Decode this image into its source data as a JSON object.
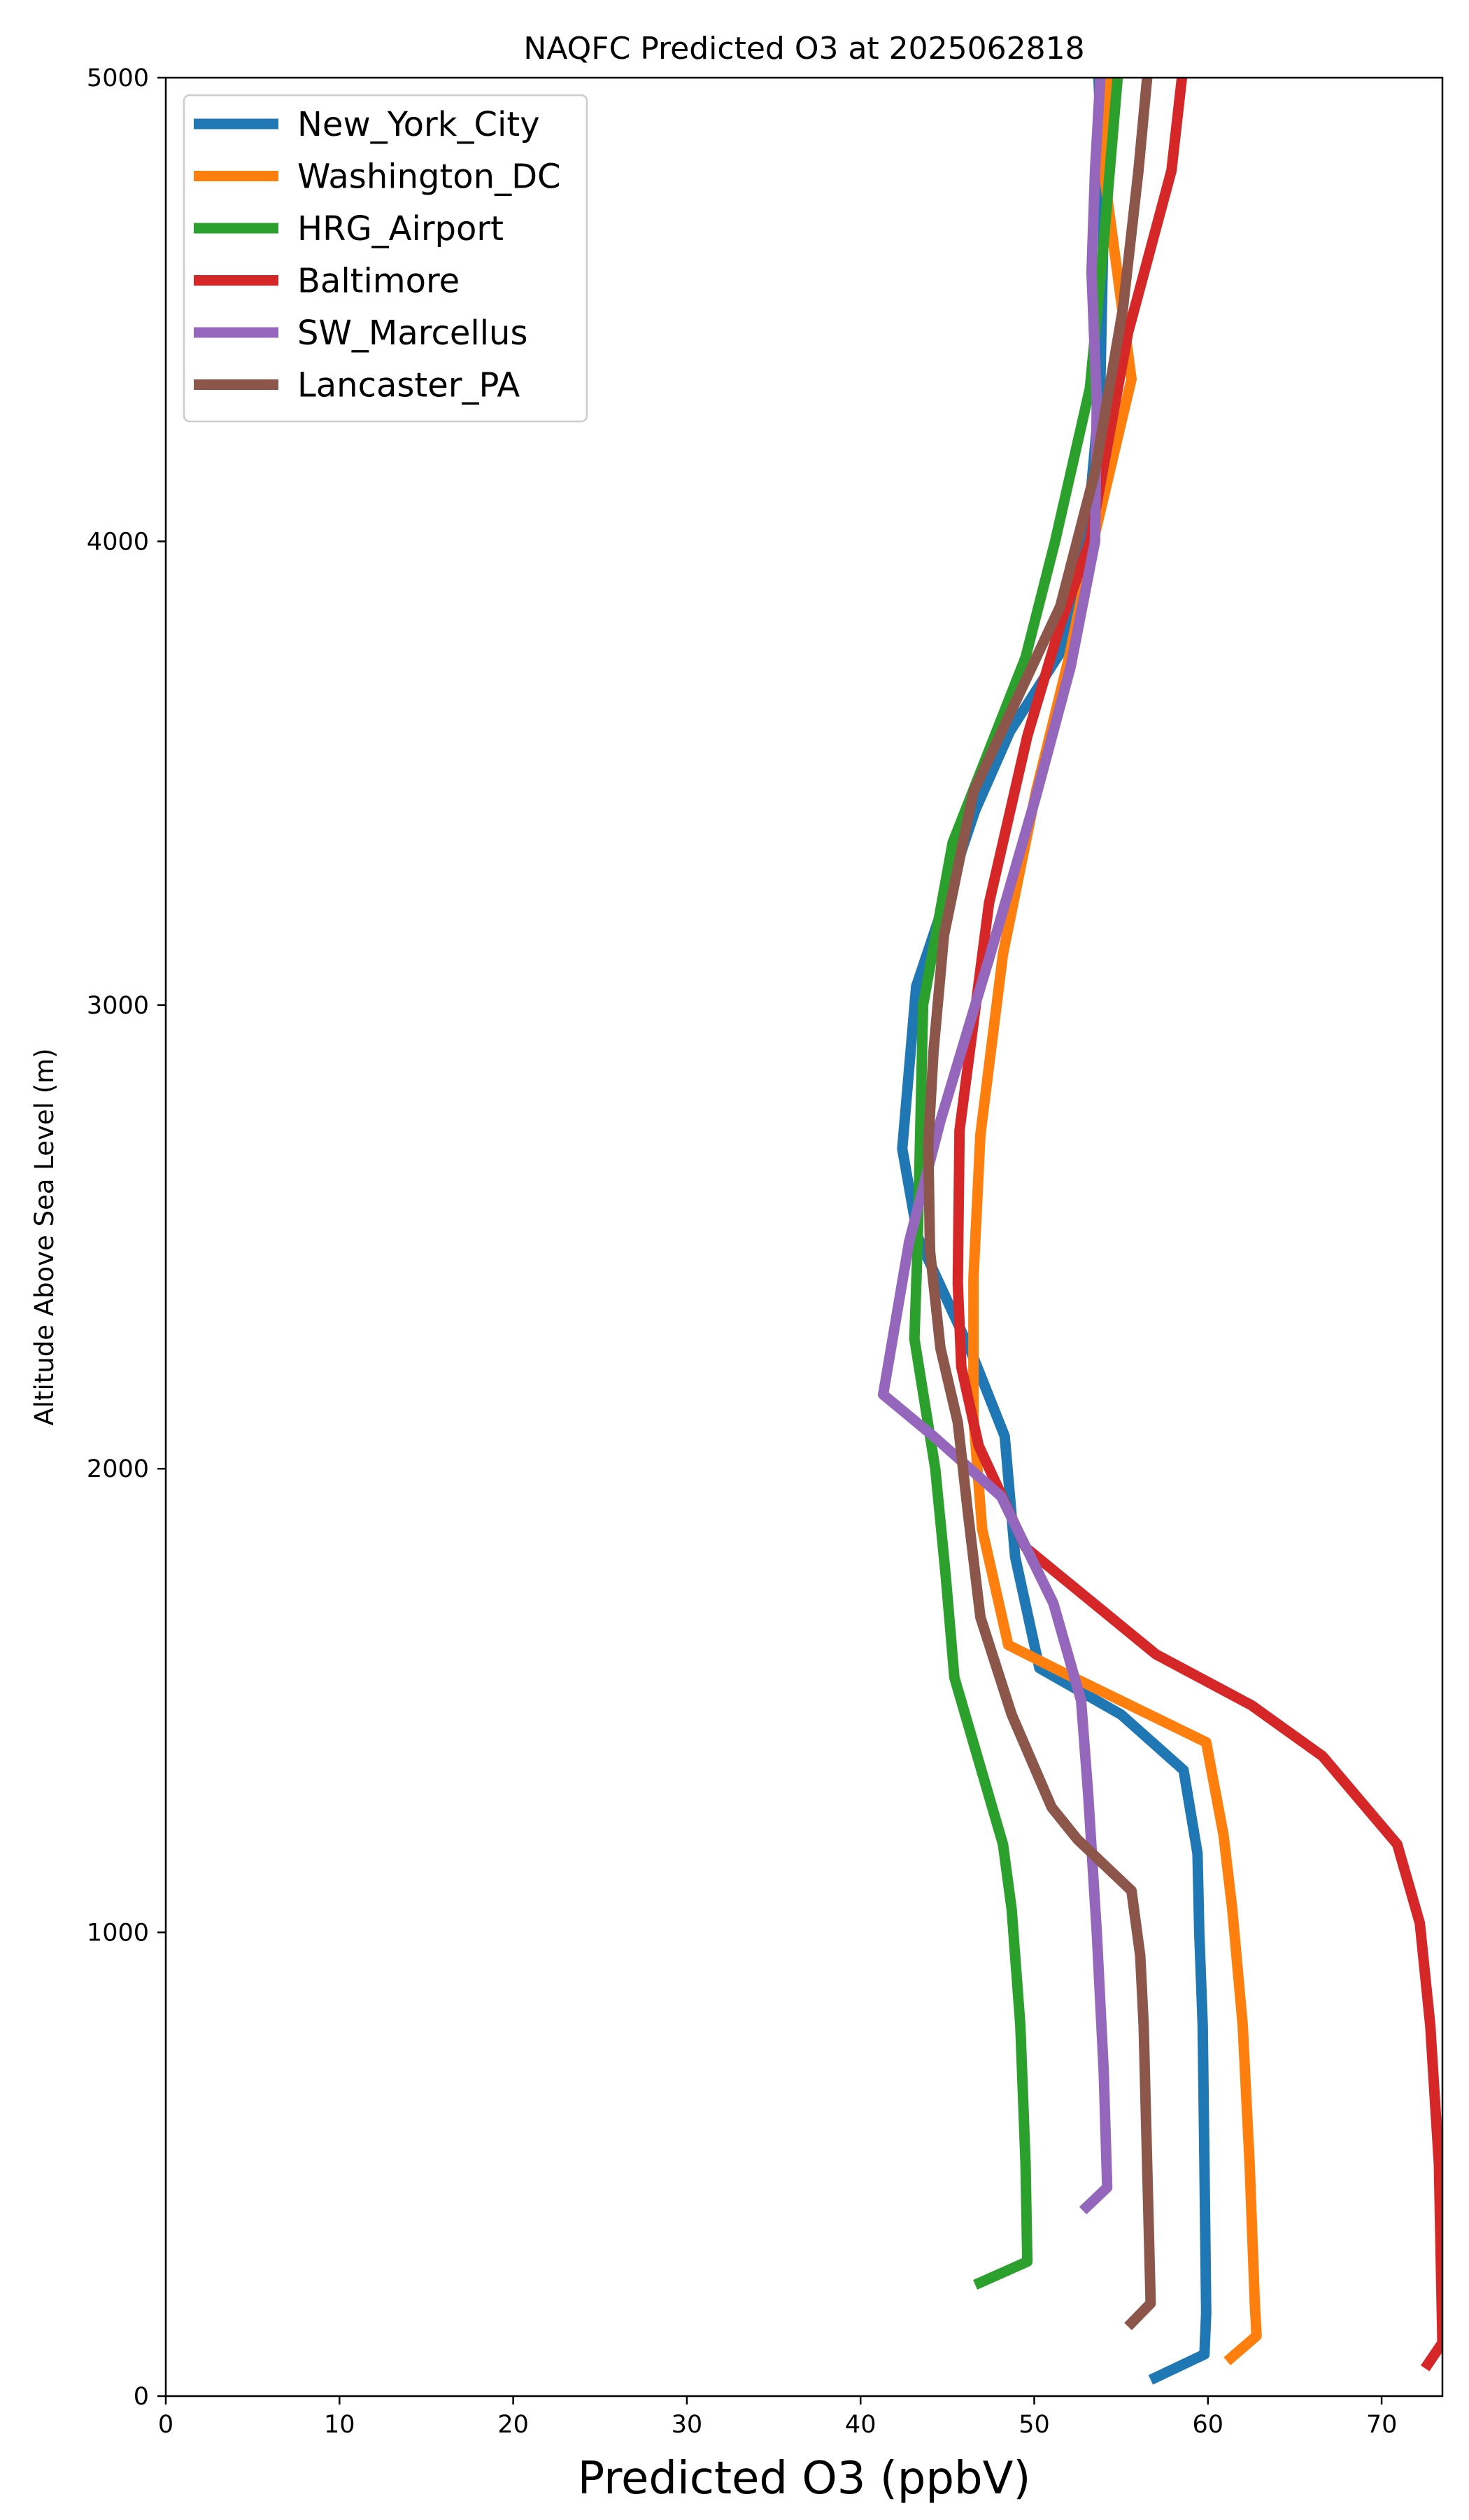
{
  "chart_data": {
    "type": "line",
    "title": "NAQFC Predicted O3 at 2025062818",
    "xlabel": "Predicted O3 (ppbV)",
    "ylabel": "Altitude Above Sea Level (m)",
    "xlim": [
      0,
      73.5
    ],
    "ylim": [
      0,
      5000
    ],
    "xticks": [
      0,
      10,
      20,
      30,
      40,
      50,
      60,
      70
    ],
    "yticks": [
      0,
      1000,
      2000,
      3000,
      4000,
      5000
    ],
    "grid": false,
    "legend_position": "upper left",
    "series": [
      {
        "name": "New_York_City",
        "color": "#1f77b4",
        "points": [
          [
            56.7,
            35
          ],
          [
            59.8,
            90
          ],
          [
            59.9,
            180
          ],
          [
            59.8,
            500
          ],
          [
            59.7,
            800
          ],
          [
            59.5,
            1000
          ],
          [
            59.4,
            1170
          ],
          [
            58.6,
            1350
          ],
          [
            55.0,
            1470
          ],
          [
            50.3,
            1570
          ],
          [
            48.9,
            1810
          ],
          [
            48.3,
            2070
          ],
          [
            46.5,
            2240
          ],
          [
            43.3,
            2500
          ],
          [
            42.4,
            2690
          ],
          [
            43.2,
            3040
          ],
          [
            46.6,
            3420
          ],
          [
            48.6,
            3590
          ],
          [
            51.5,
            3760
          ],
          [
            53.0,
            4000
          ],
          [
            53.8,
            4330
          ],
          [
            54.0,
            4700
          ],
          [
            53.7,
            5000
          ]
        ]
      },
      {
        "name": "Washington_DC",
        "color": "#ff7f0e",
        "points": [
          [
            61.1,
            75
          ],
          [
            62.8,
            130
          ],
          [
            62.7,
            200
          ],
          [
            62.4,
            500
          ],
          [
            62.0,
            800
          ],
          [
            61.4,
            1050
          ],
          [
            60.9,
            1210
          ],
          [
            59.9,
            1410
          ],
          [
            51.7,
            1560
          ],
          [
            48.5,
            1620
          ],
          [
            47.0,
            1870
          ],
          [
            46.5,
            2110
          ],
          [
            46.5,
            2410
          ],
          [
            46.9,
            2720
          ],
          [
            48.2,
            3110
          ],
          [
            50.1,
            3460
          ],
          [
            52.0,
            3750
          ],
          [
            53.4,
            4000
          ],
          [
            55.6,
            4350
          ],
          [
            54.0,
            4800
          ],
          [
            54.3,
            5000
          ]
        ]
      },
      {
        "name": "HRG_Airport",
        "color": "#2ca02c",
        "points": [
          [
            46.6,
            240
          ],
          [
            49.6,
            290
          ],
          [
            49.5,
            500
          ],
          [
            49.2,
            800
          ],
          [
            48.7,
            1050
          ],
          [
            48.2,
            1190
          ],
          [
            45.4,
            1550
          ],
          [
            44.9,
            1770
          ],
          [
            44.3,
            2000
          ],
          [
            43.1,
            2280
          ],
          [
            43.3,
            2500
          ],
          [
            43.6,
            3000
          ],
          [
            45.3,
            3350
          ],
          [
            49.5,
            3750
          ],
          [
            51.2,
            4000
          ],
          [
            53.2,
            4330
          ],
          [
            53.9,
            4600
          ],
          [
            54.8,
            5000
          ]
        ]
      },
      {
        "name": "Baltimore",
        "color": "#d62728",
        "points": [
          [
            72.5,
            60
          ],
          [
            73.5,
            115
          ],
          [
            73.3,
            500
          ],
          [
            72.8,
            800
          ],
          [
            72.2,
            1020
          ],
          [
            70.9,
            1190
          ],
          [
            66.6,
            1380
          ],
          [
            62.5,
            1490
          ],
          [
            57.0,
            1600
          ],
          [
            49.5,
            1830
          ],
          [
            46.8,
            2050
          ],
          [
            45.8,
            2220
          ],
          [
            45.6,
            2400
          ],
          [
            45.7,
            2730
          ],
          [
            47.4,
            3220
          ],
          [
            49.6,
            3580
          ],
          [
            51.5,
            3820
          ],
          [
            53.2,
            4000
          ],
          [
            55.4,
            4450
          ],
          [
            57.9,
            4800
          ],
          [
            58.5,
            5000
          ]
        ]
      },
      {
        "name": "SW_Marcellus",
        "color": "#9467bd",
        "points": [
          [
            52.8,
            400
          ],
          [
            54.2,
            450
          ],
          [
            54.0,
            700
          ],
          [
            53.6,
            1000
          ],
          [
            53.1,
            1300
          ],
          [
            52.7,
            1500
          ],
          [
            51.1,
            1710
          ],
          [
            48.1,
            1940
          ],
          [
            44.2,
            2070
          ],
          [
            41.3,
            2160
          ],
          [
            42.8,
            2490
          ],
          [
            44.6,
            2750
          ],
          [
            47.4,
            3100
          ],
          [
            50.1,
            3450
          ],
          [
            52.1,
            3730
          ],
          [
            53.5,
            4000
          ],
          [
            53.6,
            4300
          ],
          [
            53.3,
            4580
          ],
          [
            53.5,
            4800
          ],
          [
            53.8,
            5000
          ]
        ]
      },
      {
        "name": "Lancaster_PA",
        "color": "#8c564b",
        "points": [
          [
            55.4,
            150
          ],
          [
            56.7,
            200
          ],
          [
            56.5,
            500
          ],
          [
            56.3,
            800
          ],
          [
            56.1,
            950
          ],
          [
            55.6,
            1090
          ],
          [
            52.5,
            1200
          ],
          [
            51.0,
            1270
          ],
          [
            48.7,
            1470
          ],
          [
            46.9,
            1680
          ],
          [
            46.2,
            1900
          ],
          [
            45.6,
            2100
          ],
          [
            44.6,
            2260
          ],
          [
            44.0,
            2470
          ],
          [
            43.9,
            2700
          ],
          [
            44.2,
            2900
          ],
          [
            44.8,
            3150
          ],
          [
            46.5,
            3460
          ],
          [
            49.0,
            3660
          ],
          [
            51.5,
            3860
          ],
          [
            53.5,
            4150
          ],
          [
            55.1,
            4500
          ],
          [
            56.0,
            4800
          ],
          [
            56.5,
            5000
          ]
        ]
      }
    ]
  }
}
